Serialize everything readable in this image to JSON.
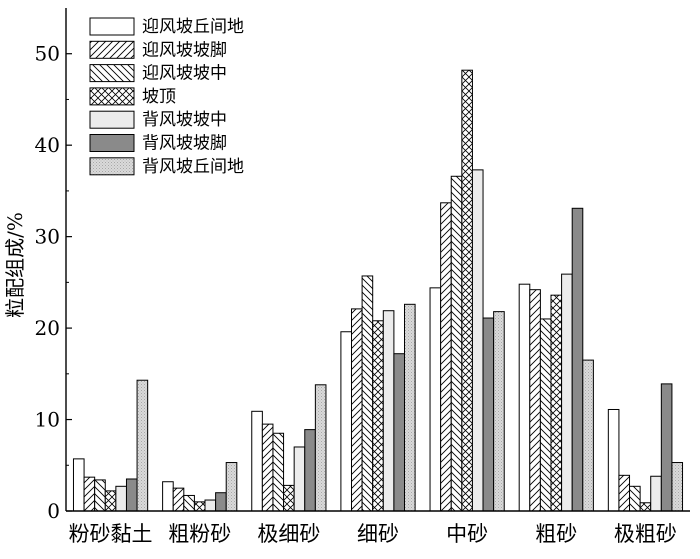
{
  "chart_data": {
    "type": "bar",
    "ylabel": "粒配组成/%",
    "ylim": [
      0,
      55
    ],
    "yticks": [
      0,
      10,
      20,
      30,
      40,
      50
    ],
    "legend_position": "top-left",
    "grid": false,
    "categories": [
      "粉砂黏土",
      "粗粉砂",
      "极细砂",
      "细砂",
      "中砂",
      "粗砂",
      "极粗砂"
    ],
    "series": [
      {
        "name": "迎风坡丘间地",
        "pattern": "plain",
        "color": "#ffffff",
        "values": [
          5.7,
          3.2,
          10.9,
          19.6,
          24.4,
          24.8,
          11.1
        ]
      },
      {
        "name": "迎风坡坡脚",
        "pattern": "forward-diagonal",
        "color": "#ffffff",
        "values": [
          3.7,
          2.5,
          9.5,
          22.1,
          33.7,
          24.2,
          3.9
        ]
      },
      {
        "name": "迎风坡坡中",
        "pattern": "back-diagonal",
        "color": "#ffffff",
        "values": [
          3.4,
          1.7,
          8.5,
          25.7,
          36.6,
          21.0,
          2.7
        ]
      },
      {
        "name": "坡顶",
        "pattern": "cross-hatch",
        "color": "#ffffff",
        "values": [
          2.2,
          1.0,
          2.8,
          20.8,
          48.2,
          23.6,
          0.9
        ]
      },
      {
        "name": "背风坡坡中",
        "pattern": "light-gray",
        "color": "#ececec",
        "values": [
          2.7,
          1.2,
          7.0,
          21.9,
          37.3,
          25.9,
          3.8
        ]
      },
      {
        "name": "背风坡坡脚",
        "pattern": "dark-gray",
        "color": "#8a8a8a",
        "values": [
          3.5,
          2.0,
          8.9,
          17.2,
          21.1,
          33.1,
          13.9
        ]
      },
      {
        "name": "背风坡丘间地",
        "pattern": "dotted-gray",
        "color": "#d6d6d6",
        "values": [
          14.3,
          5.3,
          13.8,
          22.6,
          21.8,
          16.5,
          5.3
        ]
      }
    ]
  }
}
